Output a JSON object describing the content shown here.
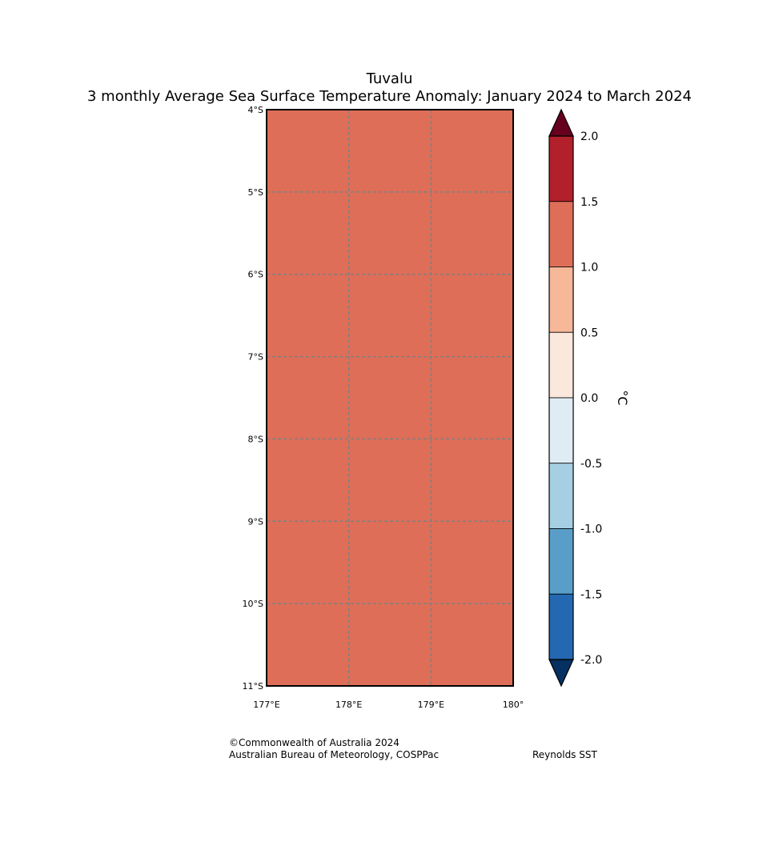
{
  "header": {
    "title": "Tuvalu",
    "subtitle": "3 monthly Average Sea Surface Temperature Anomaly: January 2024 to March 2024"
  },
  "map": {
    "lat_labels": [
      "4°S",
      "5°S",
      "6°S",
      "7°S",
      "8°S",
      "9°S",
      "10°S",
      "11°S"
    ],
    "lon_labels": [
      "177°E",
      "178°E",
      "179°E",
      "180°"
    ],
    "fill_color": "#de6e58",
    "grid_color": "#808080",
    "anomaly_band": "1.0 to 1.5"
  },
  "colorbar": {
    "unit": "°C",
    "tick_labels": [
      "2.0",
      "1.5",
      "1.0",
      "0.5",
      "0.0",
      "-0.5",
      "-1.0",
      "-1.5",
      "-2.0"
    ],
    "over_color": "#67001f",
    "under_color": "#053061",
    "band_colors": [
      "#b2202c",
      "#de6e58",
      "#f7b799",
      "#fae8dd",
      "#e0ecf3",
      "#a7cfe4",
      "#589ec9",
      "#2468b1"
    ]
  },
  "footer": {
    "copyright": "©Commonwealth of Australia 2024",
    "agency": "Australian Bureau of Meteorology, COSPPac",
    "dataset": "Reynolds SST"
  }
}
